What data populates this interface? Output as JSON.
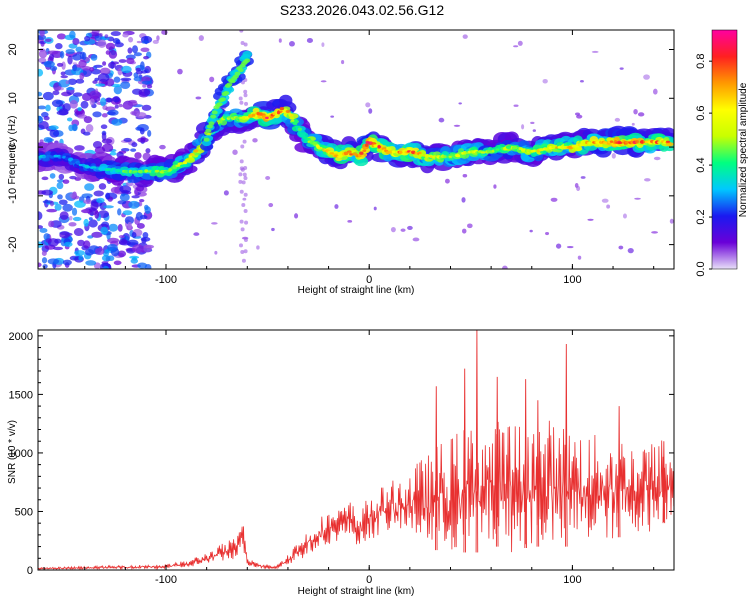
{
  "figure_title": "S233.2026.043.02.56.G12",
  "chart_data": [
    {
      "type": "heatmap",
      "title": "S233.2026.043.02.56.G12",
      "xlabel": "Height of straight line (km)",
      "ylabel": "Frequency (Hz)",
      "xlim": [
        -163,
        150
      ],
      "ylim": [
        -25,
        24
      ],
      "xticks": [
        -100,
        0,
        100
      ],
      "yticks": [
        -20,
        -10,
        0,
        10,
        20
      ],
      "colorbar": {
        "label": "Normalized spectral amplitude",
        "range": [
          0,
          0.92
        ],
        "ticks": [
          0.0,
          0.2,
          0.4,
          0.6,
          0.8
        ],
        "colormap": [
          "#e8e0f8",
          "#6a00d8",
          "#1a1af0",
          "#00c8ff",
          "#00ff80",
          "#c8ff00",
          "#ffff00",
          "#ff9900",
          "#ff2020",
          "#ff00a0"
        ]
      },
      "ridge": {
        "heights": [
          -163,
          -150,
          -140,
          -120,
          -100,
          -90,
          -85,
          -80,
          -75,
          -70,
          -65,
          -60,
          -55,
          -50,
          -45,
          -42,
          -40,
          -38,
          -35,
          -32,
          -28,
          -25,
          -20,
          -15,
          -10,
          -5,
          0,
          10,
          20,
          30,
          40,
          50,
          60,
          70,
          80,
          90,
          100,
          110,
          120,
          130,
          140,
          148
        ],
        "frequency": [
          -2,
          -2,
          -4,
          -5,
          -5,
          -3,
          -1,
          2,
          5,
          6,
          6,
          6,
          7,
          6,
          7,
          8,
          7,
          6,
          4,
          2,
          1,
          0,
          -1,
          -2,
          -1,
          -2,
          1,
          -1,
          -1,
          -2,
          -2,
          -1,
          -1,
          0,
          -1,
          0,
          0,
          1,
          1,
          1,
          1,
          1
        ],
        "amplitude": [
          0.35,
          0.3,
          0.3,
          0.45,
          0.5,
          0.6,
          0.65,
          0.6,
          0.55,
          0.55,
          0.55,
          0.6,
          0.75,
          0.85,
          0.8,
          0.75,
          0.7,
          0.6,
          0.5,
          0.45,
          0.6,
          0.55,
          0.7,
          0.75,
          0.75,
          0.75,
          0.85,
          0.7,
          0.8,
          0.6,
          0.55,
          0.6,
          0.5,
          0.55,
          0.6,
          0.65,
          0.65,
          0.7,
          0.85,
          0.8,
          0.75,
          0.8
        ]
      },
      "branch": {
        "heights": [
          -80,
          -75,
          -70,
          -65,
          -60
        ],
        "frequency": [
          2,
          8,
          12,
          15,
          18
        ]
      }
    },
    {
      "type": "line",
      "xlabel": "Height of straight line (km)",
      "ylabel": "SNR (10 * v/v)",
      "xlim": [
        -163,
        150
      ],
      "ylim": [
        0,
        2050
      ],
      "xticks": [
        -100,
        0,
        100
      ],
      "yticks": [
        0,
        500,
        1000,
        1500,
        2000
      ],
      "series": [
        {
          "name": "SNR",
          "color": "#e83030",
          "x": [
            -163,
            -140,
            -120,
            -100,
            -90,
            -80,
            -70,
            -65,
            -62,
            -60,
            -55,
            -50,
            -45,
            -40,
            -35,
            -30,
            -25,
            -20,
            -15,
            -10,
            -5,
            0,
            5,
            10,
            15,
            20,
            25,
            30,
            35,
            40,
            45,
            50,
            55,
            60,
            65,
            70,
            75,
            80,
            85,
            90,
            95,
            100,
            105,
            110,
            115,
            120,
            125,
            130,
            135,
            140,
            145,
            150
          ],
          "y": [
            20,
            30,
            40,
            50,
            80,
            150,
            250,
            280,
            460,
            120,
            60,
            40,
            50,
            150,
            250,
            350,
            450,
            500,
            520,
            600,
            500,
            650,
            700,
            750,
            800,
            850,
            950,
            1000,
            1100,
            1150,
            1200,
            1250,
            1300,
            1250,
            1300,
            1300,
            1250,
            1300,
            1280,
            1300,
            1250,
            1250,
            1200,
            1150,
            1200,
            1150,
            1150,
            1100,
            1150,
            1100,
            1150,
            1000
          ],
          "envelope_min": [
            5,
            8,
            10,
            10,
            20,
            50,
            80,
            100,
            150,
            40,
            20,
            10,
            10,
            40,
            80,
            120,
            180,
            220,
            250,
            280,
            200,
            250,
            300,
            320,
            330,
            300,
            250,
            200,
            150,
            150,
            150,
            150,
            150,
            200,
            200,
            150,
            180,
            200,
            200,
            180,
            200,
            200,
            250,
            200,
            250,
            250,
            300,
            300,
            350,
            300,
            400,
            450
          ],
          "peak_markers": [
            {
              "x": 53,
              "y": 2050
            },
            {
              "x": 97,
              "y": 1930
            },
            {
              "x": 47,
              "y": 1720
            },
            {
              "x": 63,
              "y": 1650
            },
            {
              "x": 77,
              "y": 1630
            },
            {
              "x": 33,
              "y": 1570
            },
            {
              "x": 83,
              "y": 1450
            },
            {
              "x": 123,
              "y": 1400
            },
            {
              "x": 145,
              "y": 1100
            }
          ]
        }
      ]
    }
  ]
}
